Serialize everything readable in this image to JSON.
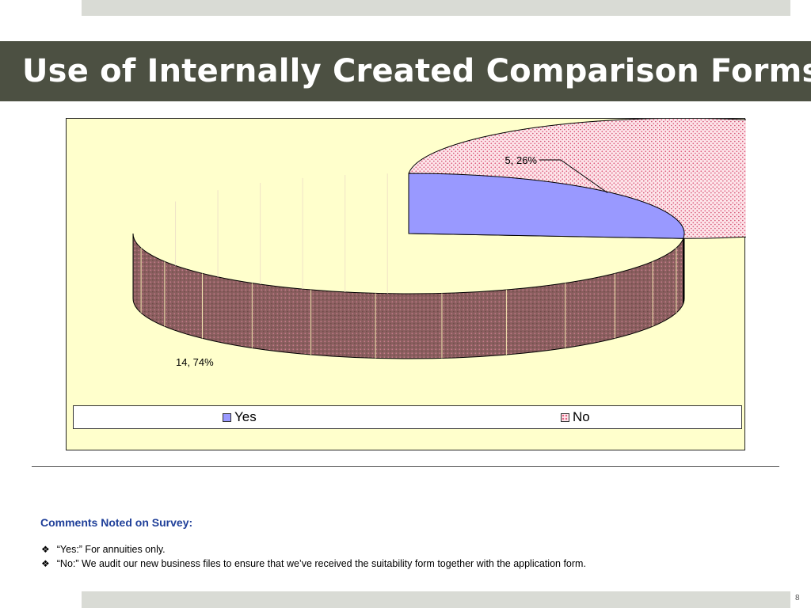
{
  "slide": {
    "title": "Use of Internally Created Comparison Forms",
    "page_number": "8"
  },
  "chart_data": {
    "type": "pie",
    "style": "3d",
    "legend_position": "bottom",
    "slices": [
      {
        "name": "Yes",
        "value": 5,
        "percent": 26,
        "label": "5, 26%",
        "color": "#9999ff"
      },
      {
        "name": "No",
        "value": 14,
        "percent": 74,
        "label": "14, 74%",
        "color": "#fde5ea"
      }
    ]
  },
  "comments": {
    "heading": "Comments Noted on Survey:",
    "items": [
      "“Yes:” For annuities only.",
      "“No:” We audit our new business files to ensure that we’ve received the suitability form together with  the application form."
    ]
  }
}
